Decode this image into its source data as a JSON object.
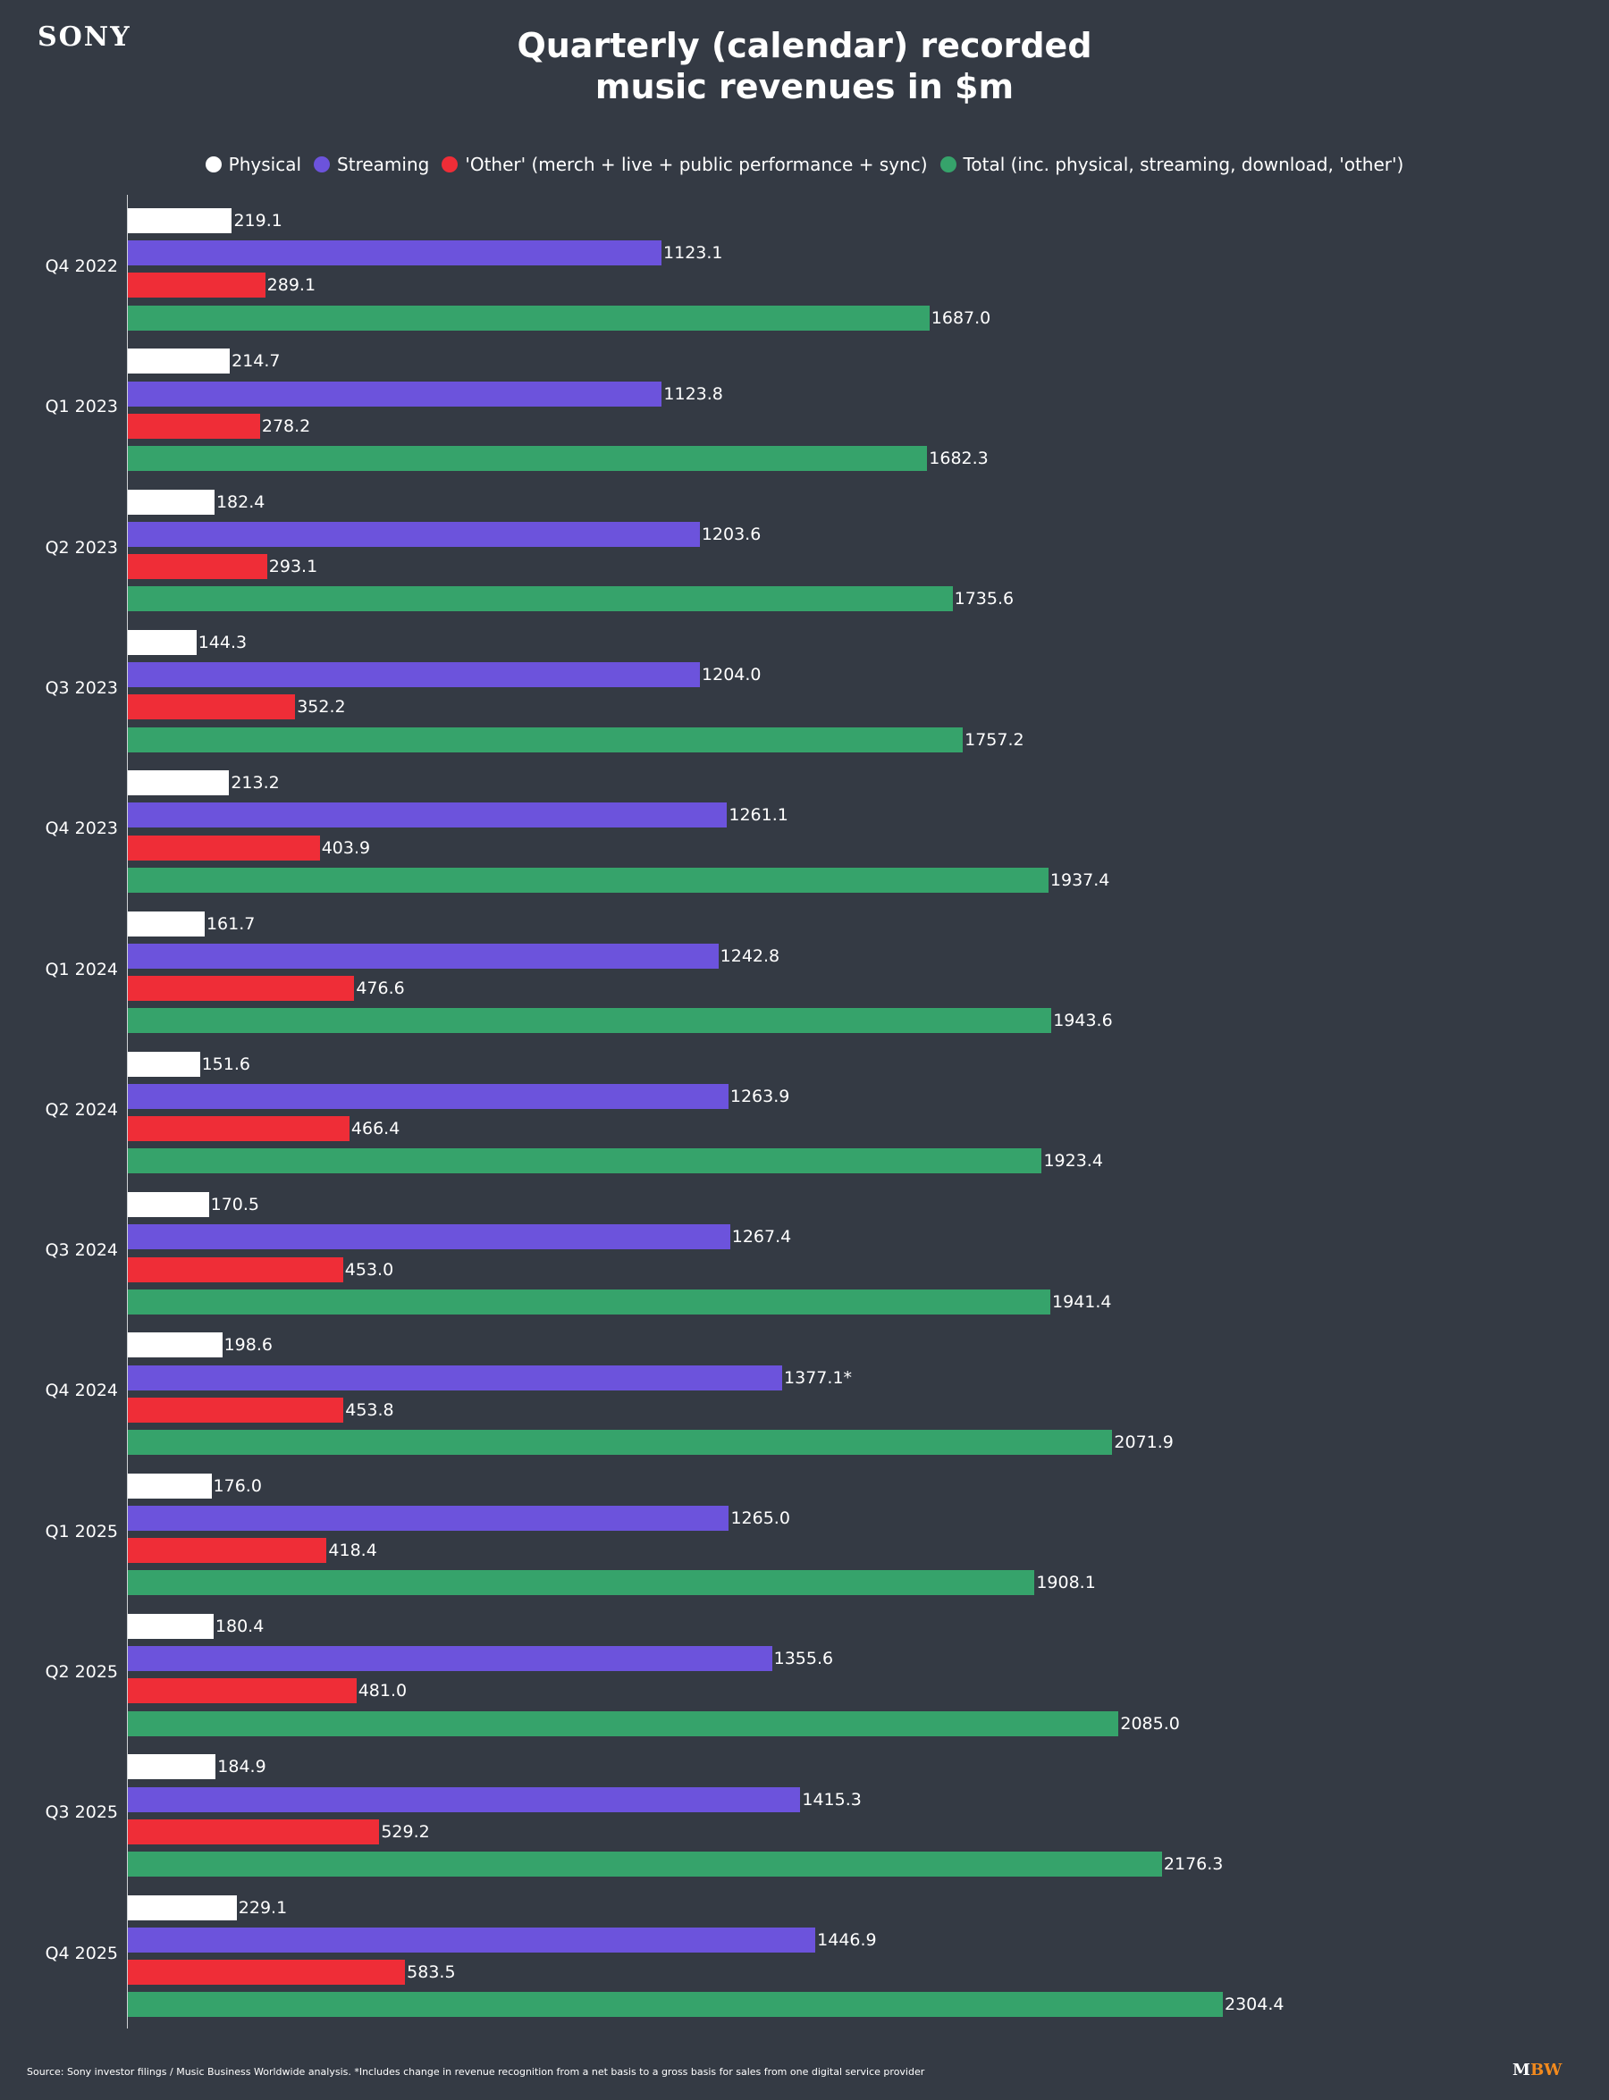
{
  "logo": "SONY",
  "footer": {
    "source": "Source: Sony investor filings / Music Business Worldwide analysis. *Includes change in revenue recognition from a net basis to a gross basis for sales from one digital service provider",
    "brand_m": "M",
    "brand_bw": "BW"
  },
  "chart_data": {
    "type": "bar",
    "orientation": "horizontal",
    "title_line1": "Quarterly (calendar) recorded",
    "title_line2": "music revenues in $m",
    "legend_position": "top",
    "grid": false,
    "xlim": [
      0,
      2350
    ],
    "categories": [
      "Q4 2022",
      "Q1 2023",
      "Q2 2023",
      "Q3 2023",
      "Q4 2023",
      "Q1 2024",
      "Q2 2024",
      "Q3 2024",
      "Q4 2024",
      "Q1 2025",
      "Q2 2025",
      "Q3 2025",
      "Q4 2025"
    ],
    "series": [
      {
        "name": "Physical",
        "color": "#ffffff",
        "values": [
          219.1,
          214.7,
          182.4,
          144.3,
          213.2,
          161.7,
          151.6,
          170.5,
          198.6,
          176.0,
          180.4,
          184.9,
          229.1
        ],
        "labels": [
          "219.1",
          "214.7",
          "182.4",
          "144.3",
          "213.2",
          "161.7",
          "151.6",
          "170.5",
          "198.6",
          "176.0",
          "180.4",
          "184.9",
          "229.1"
        ]
      },
      {
        "name": "Streaming",
        "color": "#6c53dc",
        "values": [
          1123.1,
          1123.8,
          1203.6,
          1204.0,
          1261.1,
          1242.8,
          1263.9,
          1267.4,
          1377.1,
          1265.0,
          1355.6,
          1415.3,
          1446.9
        ],
        "labels": [
          "1123.1",
          "1123.8",
          "1203.6",
          "1204.0",
          "1261.1",
          "1242.8",
          "1263.9",
          "1267.4",
          "1377.1*",
          "1265.0",
          "1355.6",
          "1415.3",
          "1446.9"
        ]
      },
      {
        "name": "'Other' (merch + live + public performance + sync)",
        "color": "#ef2d37",
        "values": [
          289.1,
          278.2,
          293.1,
          352.2,
          403.9,
          476.6,
          466.4,
          453.0,
          453.8,
          418.4,
          481.0,
          529.2,
          583.5
        ],
        "labels": [
          "289.1",
          "278.2",
          "293.1",
          "352.2",
          "403.9",
          "476.6",
          "466.4",
          "453.0",
          "453.8",
          "418.4",
          "481.0",
          "529.2",
          "583.5"
        ]
      },
      {
        "name": "Total (inc. physical, streaming, download, 'other')",
        "color": "#36a36b",
        "values": [
          1687.0,
          1682.3,
          1735.6,
          1757.2,
          1937.4,
          1943.6,
          1923.4,
          1941.4,
          2071.9,
          1908.1,
          2085.0,
          2176.3,
          2304.4
        ],
        "labels": [
          "1687.0",
          "1682.3",
          "1735.6",
          "1757.2",
          "1937.4",
          "1943.6",
          "1923.4",
          "1941.4",
          "2071.9",
          "1908.1",
          "2085.0",
          "2176.3",
          "2304.4"
        ]
      }
    ]
  }
}
